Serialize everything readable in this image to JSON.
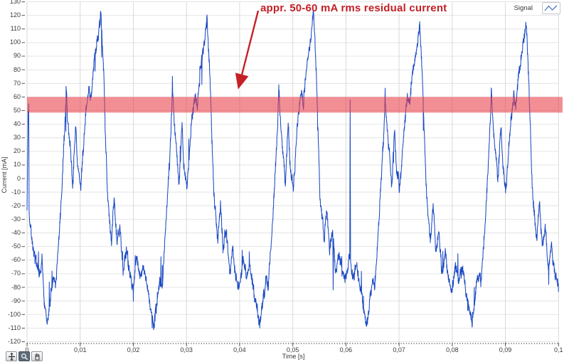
{
  "legend": {
    "label": "Signal",
    "icon": "line-chart-icon"
  },
  "annotation": {
    "text": "appr. 50-60 mA rms residual current",
    "color": "#c42026",
    "arrow": {
      "from_x": 363,
      "from_y": 15,
      "to_x": 336,
      "to_y": 121
    }
  },
  "toolbar": {
    "buttons": [
      {
        "name": "select-tool",
        "icon": "crosshair-icon",
        "active": false
      },
      {
        "name": "zoom-tool",
        "icon": "magnifier-icon",
        "active": true
      },
      {
        "name": "pan-tool",
        "icon": "hand-icon",
        "active": false
      }
    ]
  },
  "chart_data": {
    "type": "line",
    "title": "",
    "xlabel": "Time [s]",
    "ylabel": "Current [mA]",
    "xlim": [
      0,
      0.1
    ],
    "ylim": [
      -120,
      130
    ],
    "y_tick_step": 10,
    "grid": true,
    "legend_position": "top-right",
    "x_ticks": [
      {
        "v": 0.0,
        "label": "0"
      },
      {
        "v": 0.01,
        "label": "0,01"
      },
      {
        "v": 0.02,
        "label": "0,02"
      },
      {
        "v": 0.03,
        "label": "0,03"
      },
      {
        "v": 0.04,
        "label": "0,04"
      },
      {
        "v": 0.05,
        "label": "0,05"
      },
      {
        "v": 0.06,
        "label": "0,06"
      },
      {
        "v": 0.07,
        "label": "0,07"
      },
      {
        "v": 0.08,
        "label": "0,08"
      },
      {
        "v": 0.09,
        "label": "0,09"
      },
      {
        "v": 0.1,
        "label": "0,1"
      }
    ],
    "band": {
      "y0": 48.5,
      "y1": 60,
      "color": "rgba(233,62,72,0.58)",
      "meaning": "appr. 50-60 mA rms residual current band"
    },
    "series": [
      {
        "name": "Signal",
        "color": "#1d4bc4",
        "stroke_width": 1.05
      }
    ],
    "waveform": {
      "description": "noisy 50 Hz residual-current signal, peaks ~112-122 mA, troughs ~-104..-112 mA",
      "period": 0.02,
      "first_trough_t": 0.0038,
      "lead_in": [
        [
          0.0,
          -24
        ],
        [
          0.0002,
          55
        ],
        [
          0.0004,
          -30
        ],
        [
          0.0008,
          -44
        ],
        [
          0.0013,
          -56
        ],
        [
          0.0019,
          -64
        ],
        [
          0.0024,
          -72
        ],
        [
          0.0028,
          -58
        ],
        [
          0.0032,
          -86
        ],
        [
          0.0038,
          -107
        ]
      ],
      "cycle_anchors": [
        [
          0.0,
          -107
        ],
        [
          0.0007,
          -86
        ],
        [
          0.0012,
          -72
        ],
        [
          0.0016,
          -79
        ],
        [
          0.0021,
          -50
        ],
        [
          0.0026,
          -16
        ],
        [
          0.003,
          12
        ],
        [
          0.0034,
          45
        ],
        [
          0.00353,
          60
        ],
        [
          0.00356,
          75
        ],
        [
          0.0036,
          62
        ],
        [
          0.004,
          34
        ],
        [
          0.0044,
          20
        ],
        [
          0.0048,
          -6
        ],
        [
          0.0052,
          28
        ],
        [
          0.00535,
          42
        ],
        [
          0.0057,
          10
        ],
        [
          0.0063,
          -8
        ],
        [
          0.0068,
          22
        ],
        [
          0.0073,
          48
        ],
        [
          0.0078,
          66
        ],
        [
          0.0082,
          56
        ],
        [
          0.0088,
          86
        ],
        [
          0.0093,
          97
        ],
        [
          0.0097,
          108
        ],
        [
          0.01,
          118
        ],
        [
          0.01005,
          122
        ],
        [
          0.0102,
          112
        ],
        [
          0.0106,
          80
        ],
        [
          0.0109,
          38
        ],
        [
          0.0113,
          -10
        ],
        [
          0.0117,
          -28
        ],
        [
          0.0121,
          -45
        ],
        [
          0.0126,
          -18
        ],
        [
          0.0131,
          -52
        ],
        [
          0.0137,
          -36
        ],
        [
          0.0143,
          -66
        ],
        [
          0.0149,
          -52
        ],
        [
          0.0155,
          -70
        ],
        [
          0.0162,
          -78
        ],
        [
          0.0168,
          -60
        ],
        [
          0.0175,
          -72
        ],
        [
          0.0182,
          -64
        ],
        [
          0.0189,
          -82
        ],
        [
          0.0195,
          -94
        ],
        [
          0.02,
          -107
        ]
      ],
      "cycle_peak_scale": [
        1.0,
        0.967,
        0.983,
        0.933,
        0.958
      ],
      "cycle_trough_scale": [
        1.0,
        1.028,
        1.0,
        1.047,
        0.972
      ],
      "tall_spikes": [
        [
          0.0003,
          55
        ],
        [
          0.0576,
          -82
        ],
        [
          0.0608,
          58
        ]
      ],
      "noise": {
        "seed": 1337,
        "hf_amp": 4.5,
        "wander_amp": 6.5,
        "spike_prob": 0.012,
        "spike_amp": 20
      },
      "samples": 2600
    }
  }
}
